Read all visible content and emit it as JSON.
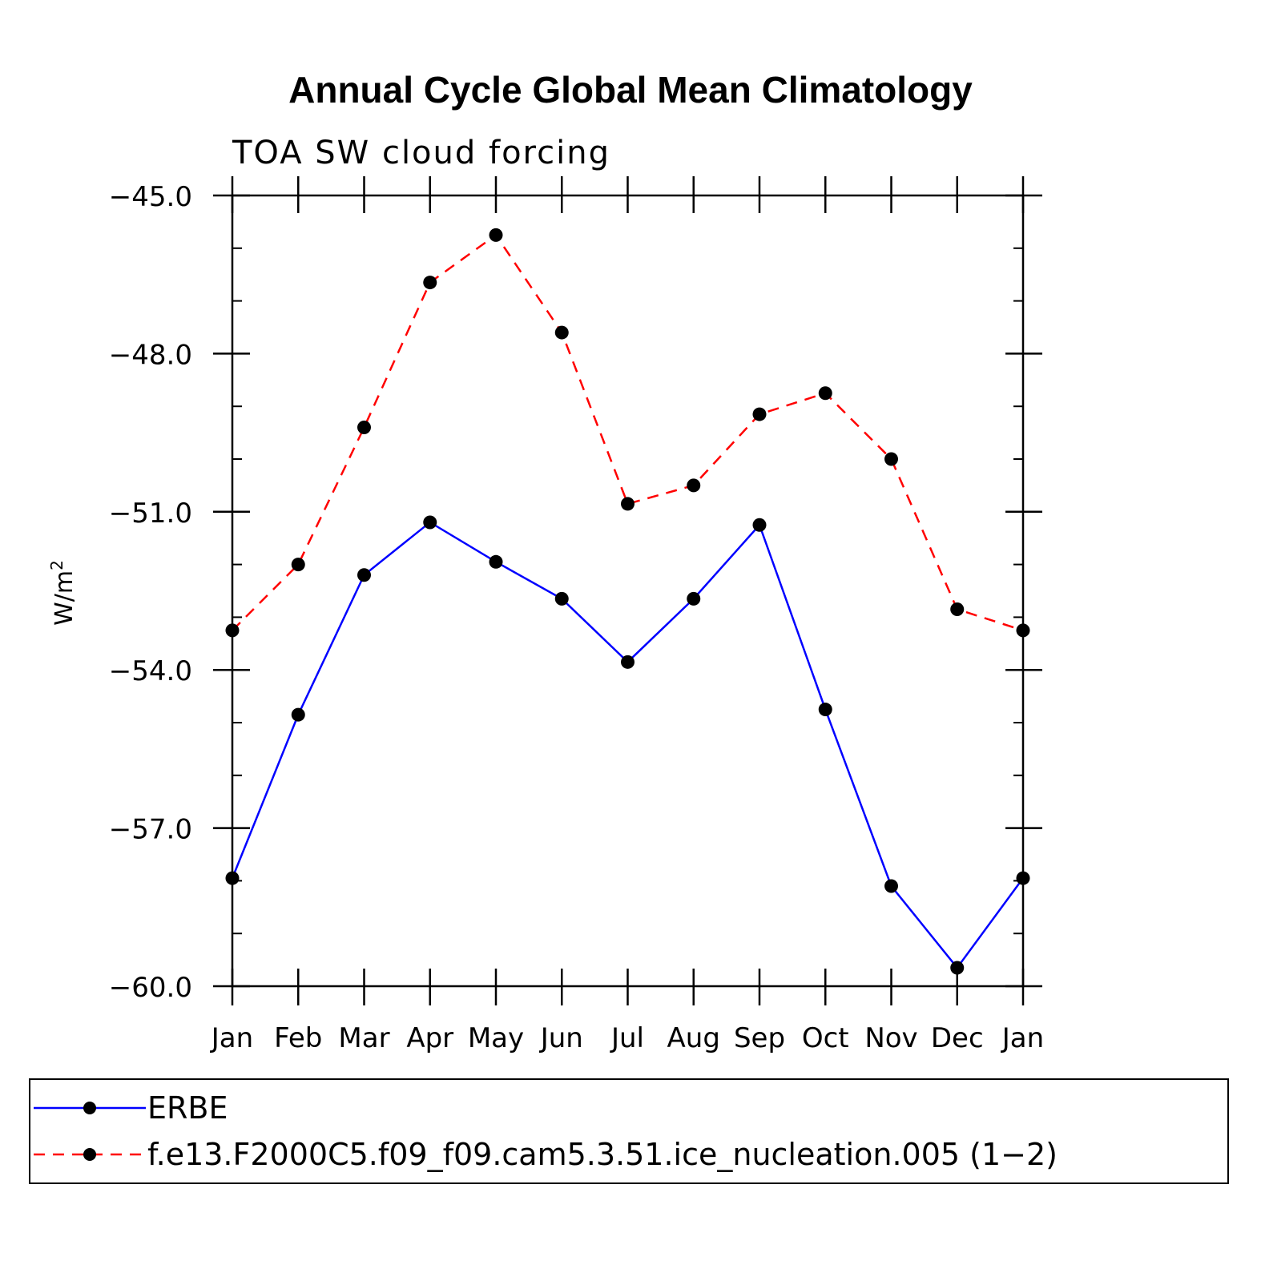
{
  "chart_data": {
    "type": "line",
    "title": "Annual Cycle Global Mean Climatology",
    "subtitle": "TOA SW cloud forcing",
    "ylabel": "W/m",
    "ylabel_superscript": "2",
    "ylim": [
      -60.0,
      -45.0
    ],
    "yticks": [
      -45.0,
      -48.0,
      -51.0,
      -54.0,
      -57.0,
      -60.0
    ],
    "ytick_labels": [
      "−45.0",
      "−48.0",
      "−51.0",
      "−54.0",
      "−57.0",
      "−60.0"
    ],
    "categories": [
      "Jan",
      "Feb",
      "Mar",
      "Apr",
      "May",
      "Jun",
      "Jul",
      "Aug",
      "Sep",
      "Oct",
      "Nov",
      "Dec",
      "Jan"
    ],
    "series": [
      {
        "name": "ERBE",
        "color": "#0000ff",
        "dash": "solid",
        "values": [
          -57.95,
          -54.85,
          -52.2,
          -51.2,
          -51.95,
          -52.65,
          -53.85,
          -52.65,
          -51.25,
          -54.75,
          -58.1,
          -59.65,
          -57.95
        ]
      },
      {
        "name": "f.e13.F2000C5.f09_f09.cam5.3.51.ice_nucleation.005 (1−2)",
        "color": "#ff0000",
        "dash": "dashed",
        "values": [
          -53.25,
          -52.0,
          -49.4,
          -46.65,
          -45.75,
          -47.6,
          -50.85,
          -50.5,
          -49.15,
          -48.75,
          -50.0,
          -52.85,
          -53.25
        ]
      }
    ],
    "marker_color": "#000000",
    "legend_position": "bottom"
  }
}
